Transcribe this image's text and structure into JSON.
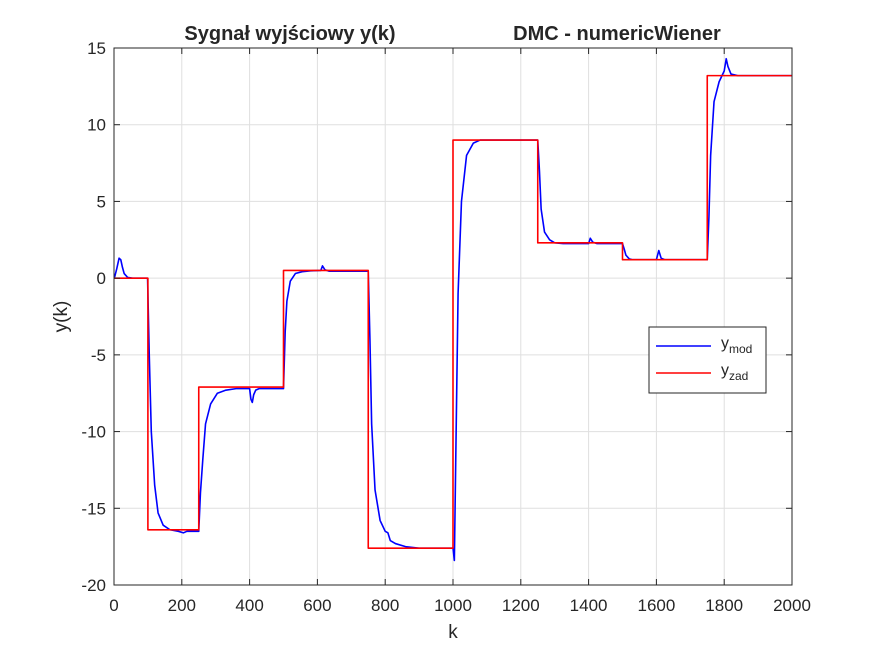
{
  "chart_data": {
    "type": "line",
    "title": "Sygnał wyjściowy y(k)",
    "subtitle": "DMC - numericWiener",
    "xlabel": "k",
    "ylabel": "y(k)",
    "xlim": [
      0,
      2000
    ],
    "ylim": [
      -20,
      15
    ],
    "xticks": [
      0,
      200,
      400,
      600,
      800,
      1000,
      1200,
      1400,
      1600,
      1800,
      2000
    ],
    "yticks": [
      -20,
      -15,
      -10,
      -5,
      0,
      5,
      10,
      15
    ],
    "grid": true,
    "legend_position": "right",
    "series": [
      {
        "name": "y",
        "sub": "mod",
        "color": "#0000ff",
        "x": [
          1,
          8,
          15,
          20,
          25,
          30,
          40,
          55,
          70,
          99,
          104,
          110,
          120,
          130,
          145,
          165,
          190,
          205,
          215,
          230,
          250,
          255,
          262,
          270,
          285,
          305,
          330,
          360,
          400,
          404,
          408,
          412,
          418,
          428,
          450,
          500,
          505,
          510,
          520,
          535,
          555,
          580,
          610,
          615,
          622,
          635,
          665,
          700,
          750,
          755,
          760,
          770,
          785,
          800,
          808,
          815,
          830,
          860,
          900,
          950,
          1000,
          1004,
          1008,
          1015,
          1025,
          1040,
          1060,
          1080,
          1150,
          1250,
          1255,
          1260,
          1270,
          1285,
          1300,
          1325,
          1400,
          1405,
          1412,
          1425,
          1500,
          1505,
          1510,
          1520,
          1530,
          1600,
          1607,
          1614,
          1625,
          1750,
          1755,
          1760,
          1770,
          1785,
          1800,
          1806,
          1811,
          1820,
          1840,
          1900,
          2000
        ],
        "y": [
          0,
          0.6,
          1.3,
          1.2,
          0.7,
          0.3,
          0.05,
          0,
          0,
          0,
          -5,
          -10,
          -13.5,
          -15.3,
          -16.1,
          -16.4,
          -16.5,
          -16.6,
          -16.5,
          -16.5,
          -16.5,
          -14,
          -11.8,
          -9.5,
          -8.2,
          -7.5,
          -7.3,
          -7.2,
          -7.2,
          -7.9,
          -8.1,
          -7.6,
          -7.3,
          -7.2,
          -7.2,
          -7.2,
          -3.5,
          -1.5,
          -0.2,
          0.3,
          0.42,
          0.48,
          0.5,
          0.8,
          0.55,
          0.45,
          0.45,
          0.45,
          0.45,
          -4,
          -9.5,
          -13.8,
          -15.8,
          -16.5,
          -16.6,
          -17.1,
          -17.3,
          -17.5,
          -17.6,
          -17.6,
          -17.6,
          -18.4,
          -12,
          -1,
          5,
          8,
          8.8,
          9,
          9,
          9,
          7,
          4.5,
          3,
          2.5,
          2.3,
          2.25,
          2.25,
          2.6,
          2.35,
          2.25,
          2.25,
          1.9,
          1.5,
          1.25,
          1.2,
          1.2,
          1.8,
          1.3,
          1.2,
          1.2,
          4,
          8,
          11.5,
          12.8,
          13.5,
          14.3,
          13.8,
          13.3,
          13.2,
          13.2,
          13.2
        ]
      },
      {
        "name": "y",
        "sub": "zad",
        "color": "#ff0000",
        "x": [
          0,
          100,
          100,
          250,
          250,
          500,
          500,
          750,
          750,
          1000,
          1000,
          1250,
          1250,
          1500,
          1500,
          1750,
          1750,
          2000
        ],
        "y": [
          0,
          0,
          -16.4,
          -16.4,
          -7.1,
          -7.1,
          0.5,
          0.5,
          -17.6,
          -17.6,
          9,
          9,
          2.3,
          2.3,
          1.2,
          1.2,
          13.2,
          13.2
        ]
      }
    ]
  }
}
